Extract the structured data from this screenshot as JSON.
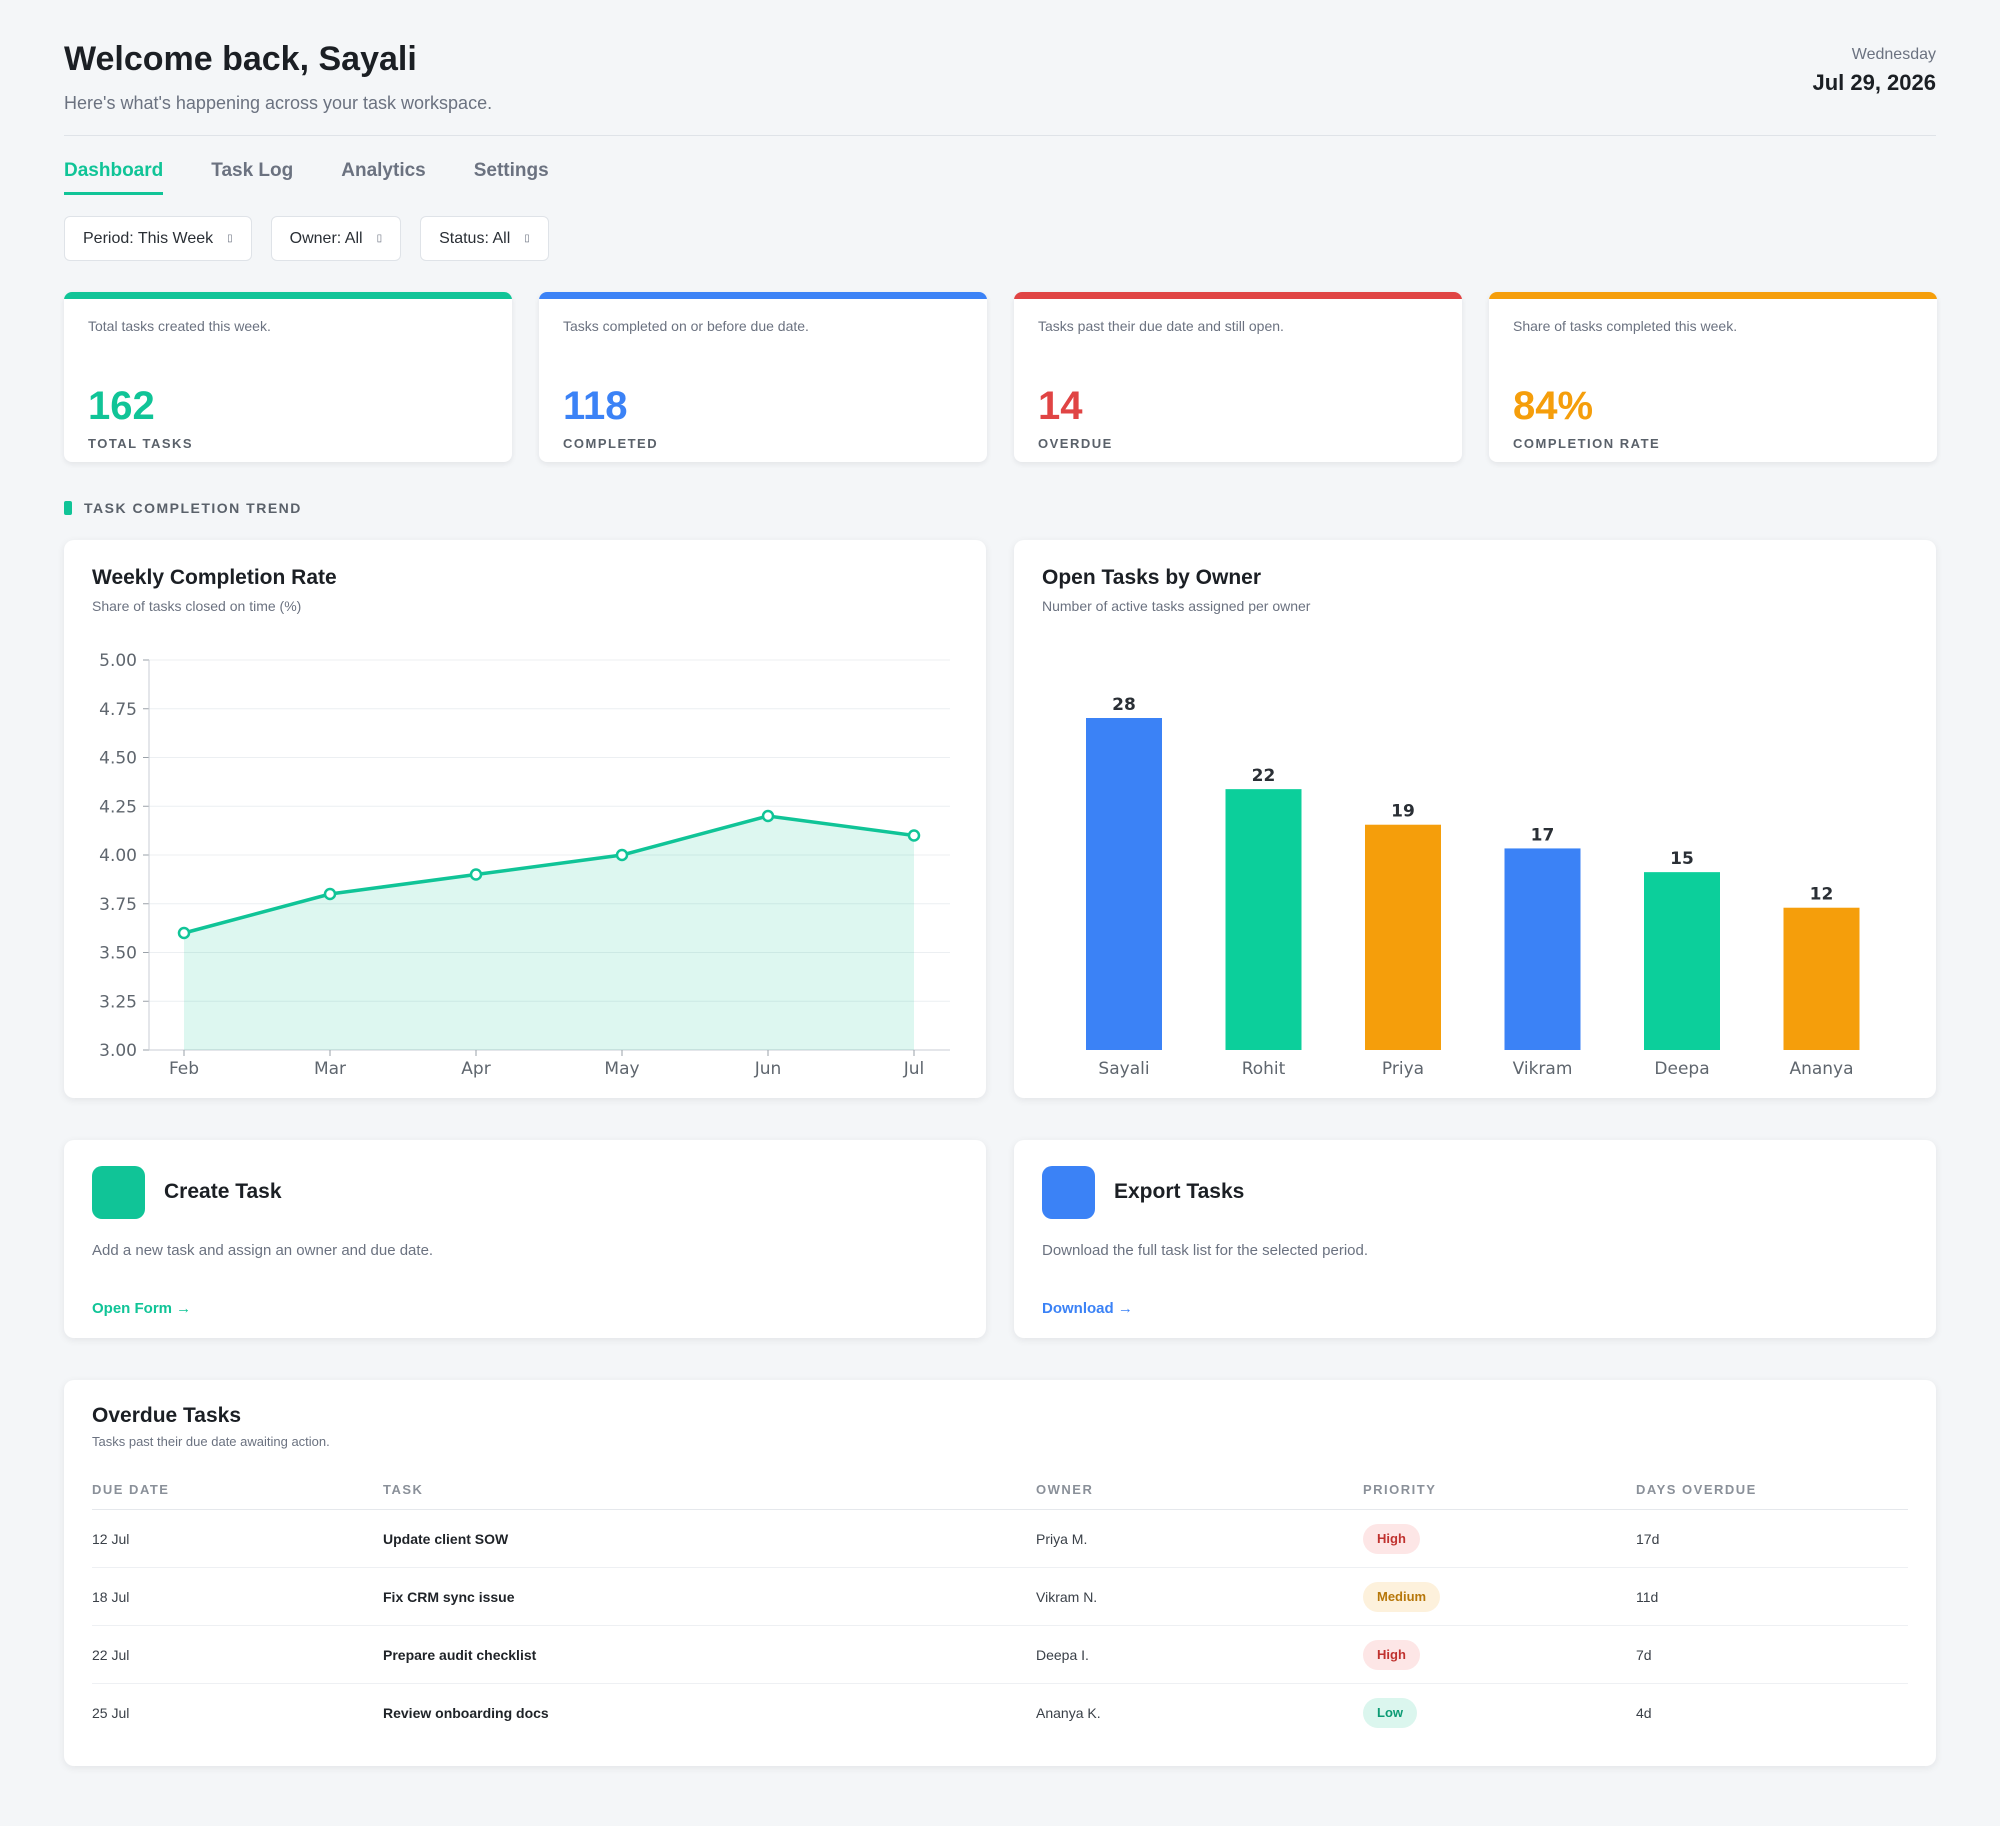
{
  "header": {
    "welcome": "Welcome back, Sayali",
    "subtitle": "Here's what's happening across your task workspace.",
    "weekday": "Wednesday",
    "date": "Jul 29, 2026"
  },
  "tabs": [
    {
      "label": "Dashboard",
      "active": true
    },
    {
      "label": "Task Log",
      "active": false
    },
    {
      "label": "Analytics",
      "active": false
    },
    {
      "label": "Settings",
      "active": false
    }
  ],
  "filters": {
    "period": "Period: This Week",
    "owner": "Owner: All",
    "status": "Status: All",
    "chevron_icon": "chevron-down-icon"
  },
  "kpis": [
    {
      "desc": "Total tasks created this week.",
      "value": "162",
      "label": "TOTAL TASKS",
      "color": "#10c497"
    },
    {
      "desc": "Tasks completed on or before due date.",
      "value": "118",
      "label": "COMPLETED",
      "color": "#3b82f6"
    },
    {
      "desc": "Tasks past their due date and still open.",
      "value": "14",
      "label": "OVERDUE",
      "color": "#e04444"
    },
    {
      "desc": "Share of tasks completed this week.",
      "value": "84%",
      "label": "COMPLETION RATE",
      "color": "#f59e0b"
    }
  ],
  "section_label": "TASK COMPLETION TREND",
  "chart_data": [
    {
      "type": "area",
      "title": "Weekly Completion Rate",
      "subtitle": "Share of tasks closed on time (%)",
      "x": [
        "Feb",
        "Mar",
        "Apr",
        "May",
        "Jun",
        "Jul"
      ],
      "values": [
        3.6,
        3.8,
        3.9,
        4.0,
        4.2,
        4.1
      ],
      "ylim": [
        3.0,
        5.0
      ],
      "yticks": [
        "3.00",
        "3.25",
        "3.50",
        "3.75",
        "4.00",
        "4.25",
        "4.50",
        "4.75",
        "5.00"
      ],
      "grid": true,
      "color": "#10c497"
    },
    {
      "type": "bar",
      "title": "Open Tasks by Owner",
      "subtitle": "Number of active tasks assigned per owner",
      "categories": [
        "Sayali",
        "Rohit",
        "Priya",
        "Vikram",
        "Deepa",
        "Ananya"
      ],
      "values": [
        28,
        22,
        19,
        17,
        15,
        12
      ],
      "ylim": [
        0,
        28
      ],
      "colors": [
        "#3b82f6",
        "#0ccf9b",
        "#f59e0b",
        "#3b82f6",
        "#0ccf9b",
        "#f59e0b"
      ],
      "data_labels": true
    }
  ],
  "actions": [
    {
      "title": "Create Task",
      "desc": "Add a new task and assign an owner and due date.",
      "link": "Open Form  →",
      "color": "#10c497"
    },
    {
      "title": "Export Tasks",
      "desc": "Download the full task list for the selected period.",
      "link": "Download  →",
      "color": "#3b82f6"
    }
  ],
  "overdue": {
    "title": "Overdue Tasks",
    "subtitle": "Tasks past their due date awaiting action.",
    "columns": [
      "DUE DATE",
      "TASK",
      "OWNER",
      "PRIORITY",
      "DAYS OVERDUE"
    ],
    "rows": [
      {
        "due": "12 Jul",
        "task": "Update client SOW",
        "owner": "Priya M.",
        "priority": "High",
        "days": "17d"
      },
      {
        "due": "18 Jul",
        "task": "Fix CRM sync issue",
        "owner": "Vikram N.",
        "priority": "Medium",
        "days": "11d"
      },
      {
        "due": "22 Jul",
        "task": "Prepare audit checklist",
        "owner": "Deepa I.",
        "priority": "High",
        "days": "7d"
      },
      {
        "due": "25 Jul",
        "task": "Review onboarding docs",
        "owner": "Ananya K.",
        "priority": "Low",
        "days": "4d"
      }
    ]
  }
}
